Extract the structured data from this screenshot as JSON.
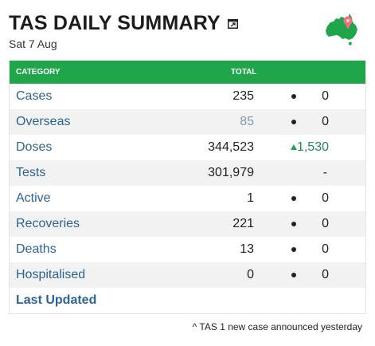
{
  "header": {
    "title": "TAS DAILY SUMMARY",
    "date": "Sat 7 Aug"
  },
  "icons": {
    "popout": "external-window-icon",
    "map": "australia-map-icon",
    "map_color": "#1fa64a",
    "pin_color": "#f07080"
  },
  "table": {
    "col_category": "CATEGORY",
    "col_total": "TOTAL",
    "header_color": "#1fa64a",
    "rows": [
      {
        "category": "Cases",
        "total": "235",
        "indicator": "dot",
        "change": "0"
      },
      {
        "category": "Overseas",
        "total": "85",
        "indicator": "dot",
        "change": "0"
      },
      {
        "category": "Doses",
        "total": "344,523",
        "indicator": "up-arrow",
        "change": "1,530"
      },
      {
        "category": "Tests",
        "total": "301,979",
        "indicator": "none",
        "change": "-"
      },
      {
        "category": "Active",
        "total": "1",
        "indicator": "dot",
        "change": "0"
      },
      {
        "category": "Recoveries",
        "total": "221",
        "indicator": "dot",
        "change": "0"
      },
      {
        "category": "Deaths",
        "total": "13",
        "indicator": "dot",
        "change": "0"
      },
      {
        "category": "Hospitalised",
        "total": "0",
        "indicator": "dot",
        "change": "0"
      }
    ],
    "last_updated_label": "Last Updated"
  },
  "footnote": "^ TAS 1 new case announced yesterday"
}
